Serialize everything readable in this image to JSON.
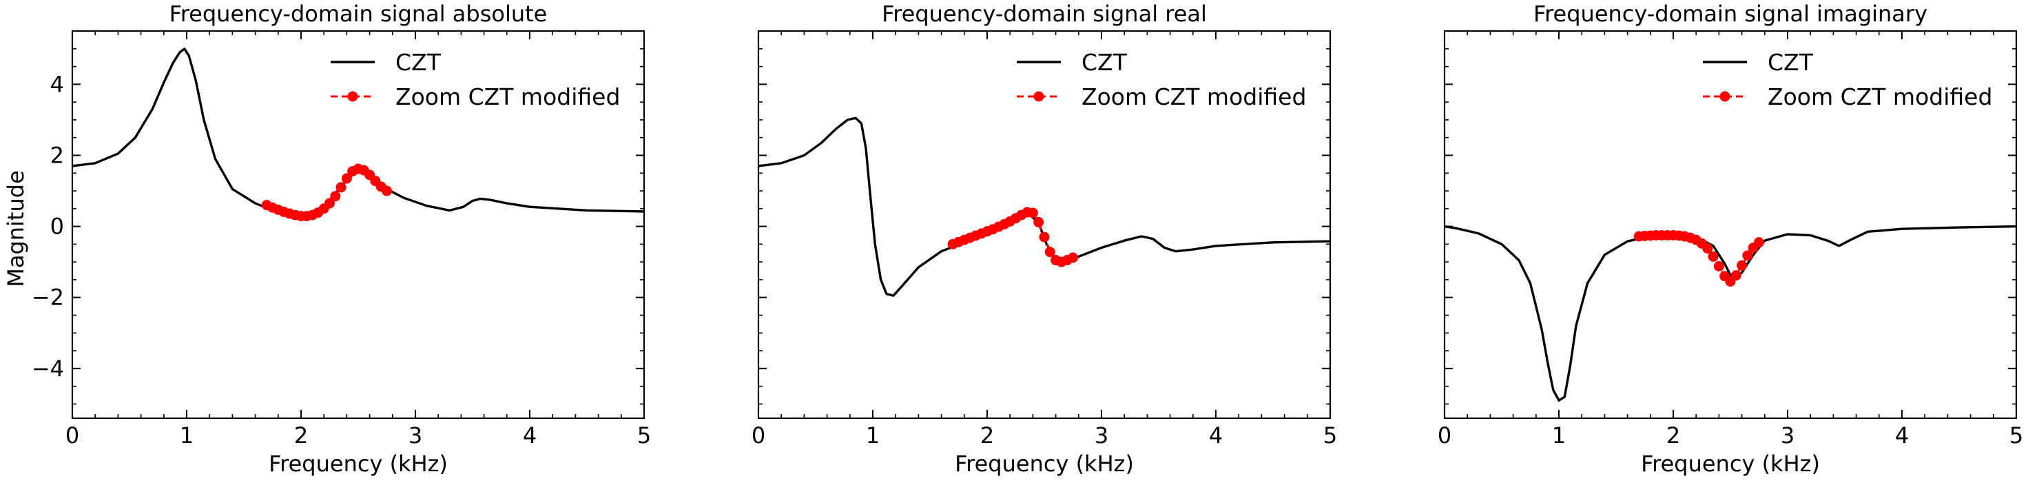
{
  "figure": {
    "ylabel": "Magnitude",
    "xlabel": "Frequency (kHz)"
  },
  "chart_data": [
    {
      "type": "line",
      "title": "Frequency-domain signal absolute",
      "xlabel": "Frequency (kHz)",
      "ylabel": "Magnitude",
      "xlim": [
        0,
        5
      ],
      "ylim": [
        -5.4,
        5.5
      ],
      "xticks": [
        0,
        1,
        2,
        3,
        4,
        5
      ],
      "yticks": [
        -4,
        -2,
        0,
        2,
        4
      ],
      "legend": {
        "position": "top-right",
        "entries": [
          "CZT",
          "Zoom CZT modified"
        ]
      },
      "series": [
        {
          "name": "CZT",
          "color": "#000000",
          "style": "line",
          "x": [
            0,
            0.2,
            0.4,
            0.55,
            0.7,
            0.8,
            0.88,
            0.94,
            0.98,
            1.02,
            1.08,
            1.15,
            1.25,
            1.4,
            1.6,
            1.8,
            2.0,
            2.2,
            2.4,
            2.5,
            2.6,
            2.75,
            2.9,
            3.1,
            3.3,
            3.42,
            3.5,
            3.57,
            3.65,
            3.8,
            4.0,
            4.5,
            5.0
          ],
          "y": [
            1.7,
            1.78,
            2.05,
            2.5,
            3.3,
            4.05,
            4.6,
            4.9,
            5.0,
            4.8,
            4.1,
            3.0,
            1.9,
            1.05,
            0.65,
            0.4,
            0.3,
            0.55,
            1.3,
            1.6,
            1.45,
            1.05,
            0.8,
            0.58,
            0.45,
            0.55,
            0.72,
            0.78,
            0.75,
            0.65,
            0.55,
            0.45,
            0.42
          ]
        },
        {
          "name": "Zoom CZT modified",
          "color": "#ff0000",
          "style": "dashed-marker",
          "x": [
            1.7,
            1.75,
            1.8,
            1.85,
            1.9,
            1.95,
            2.0,
            2.05,
            2.1,
            2.15,
            2.2,
            2.25,
            2.3,
            2.35,
            2.4,
            2.45,
            2.5,
            2.55,
            2.6,
            2.65,
            2.7,
            2.75
          ],
          "y": [
            0.6,
            0.53,
            0.47,
            0.41,
            0.36,
            0.32,
            0.29,
            0.29,
            0.32,
            0.39,
            0.5,
            0.65,
            0.85,
            1.1,
            1.35,
            1.55,
            1.62,
            1.58,
            1.45,
            1.28,
            1.12,
            1.0
          ]
        }
      ]
    },
    {
      "type": "line",
      "title": "Frequency-domain signal real",
      "xlabel": "Frequency (kHz)",
      "ylabel": "",
      "xlim": [
        0,
        5
      ],
      "ylim": [
        -5.4,
        5.5
      ],
      "xticks": [
        0,
        1,
        2,
        3,
        4,
        5
      ],
      "yticks": [
        -4,
        -2,
        0,
        2,
        4
      ],
      "legend": {
        "position": "top-right",
        "entries": [
          "CZT",
          "Zoom CZT modified"
        ]
      },
      "series": [
        {
          "name": "CZT",
          "color": "#000000",
          "style": "line",
          "x": [
            0,
            0.2,
            0.4,
            0.55,
            0.68,
            0.78,
            0.85,
            0.9,
            0.94,
            0.98,
            1.02,
            1.07,
            1.12,
            1.18,
            1.25,
            1.4,
            1.6,
            1.8,
            2.0,
            2.2,
            2.35,
            2.45,
            2.52,
            2.6,
            2.7,
            2.8,
            3.0,
            3.2,
            3.35,
            3.45,
            3.55,
            3.65,
            3.8,
            4.0,
            4.5,
            5.0
          ],
          "y": [
            1.7,
            1.78,
            2.0,
            2.35,
            2.75,
            3.0,
            3.05,
            2.9,
            2.2,
            0.8,
            -0.5,
            -1.5,
            -1.9,
            -1.95,
            -1.7,
            -1.15,
            -0.7,
            -0.45,
            -0.2,
            0.15,
            0.4,
            0.1,
            -0.5,
            -0.9,
            -1.0,
            -0.85,
            -0.6,
            -0.4,
            -0.28,
            -0.35,
            -0.6,
            -0.7,
            -0.65,
            -0.55,
            -0.45,
            -0.42
          ]
        },
        {
          "name": "Zoom CZT modified",
          "color": "#ff0000",
          "style": "dashed-marker",
          "x": [
            1.7,
            1.75,
            1.8,
            1.85,
            1.9,
            1.95,
            2.0,
            2.05,
            2.1,
            2.15,
            2.2,
            2.25,
            2.3,
            2.35,
            2.4,
            2.45,
            2.5,
            2.55,
            2.6,
            2.65,
            2.7,
            2.75
          ],
          "y": [
            -0.5,
            -0.44,
            -0.38,
            -0.32,
            -0.26,
            -0.2,
            -0.14,
            -0.08,
            -0.01,
            0.06,
            0.14,
            0.23,
            0.32,
            0.4,
            0.38,
            0.12,
            -0.3,
            -0.72,
            -0.95,
            -1.0,
            -0.95,
            -0.88
          ]
        }
      ]
    },
    {
      "type": "line",
      "title": "Frequency-domain signal imaginary",
      "xlabel": "Frequency (kHz)",
      "ylabel": "",
      "xlim": [
        0,
        5
      ],
      "ylim": [
        -5.4,
        5.5
      ],
      "xticks": [
        0,
        1,
        2,
        3,
        4,
        5
      ],
      "yticks": [
        -4,
        -2,
        0,
        2,
        4
      ],
      "legend": {
        "position": "top-right",
        "entries": [
          "CZT",
          "Zoom CZT modified"
        ]
      },
      "series": [
        {
          "name": "CZT",
          "color": "#000000",
          "style": "line",
          "x": [
            0,
            0.1,
            0.3,
            0.5,
            0.65,
            0.75,
            0.85,
            0.9,
            0.95,
            1.0,
            1.05,
            1.1,
            1.15,
            1.25,
            1.4,
            1.6,
            1.8,
            2.0,
            2.2,
            2.35,
            2.45,
            2.52,
            2.6,
            2.7,
            2.8,
            3.0,
            3.2,
            3.35,
            3.45,
            3.55,
            3.7,
            4.0,
            4.5,
            5.0
          ],
          "y": [
            0.0,
            -0.05,
            -0.2,
            -0.5,
            -0.95,
            -1.6,
            -2.9,
            -3.8,
            -4.6,
            -4.9,
            -4.8,
            -3.9,
            -2.8,
            -1.6,
            -0.8,
            -0.42,
            -0.28,
            -0.25,
            -0.3,
            -0.55,
            -1.05,
            -1.5,
            -1.3,
            -0.8,
            -0.4,
            -0.22,
            -0.25,
            -0.4,
            -0.55,
            -0.38,
            -0.15,
            -0.07,
            -0.03,
            0.0
          ]
        },
        {
          "name": "Zoom CZT modified",
          "color": "#ff0000",
          "style": "dashed-marker",
          "x": [
            1.7,
            1.75,
            1.8,
            1.85,
            1.9,
            1.95,
            2.0,
            2.05,
            2.1,
            2.15,
            2.2,
            2.25,
            2.3,
            2.35,
            2.4,
            2.45,
            2.5,
            2.55,
            2.6,
            2.65,
            2.7,
            2.75
          ],
          "y": [
            -0.28,
            -0.27,
            -0.26,
            -0.25,
            -0.25,
            -0.25,
            -0.25,
            -0.26,
            -0.28,
            -0.32,
            -0.38,
            -0.48,
            -0.62,
            -0.85,
            -1.12,
            -1.4,
            -1.55,
            -1.38,
            -1.1,
            -0.82,
            -0.6,
            -0.45
          ]
        }
      ]
    }
  ]
}
